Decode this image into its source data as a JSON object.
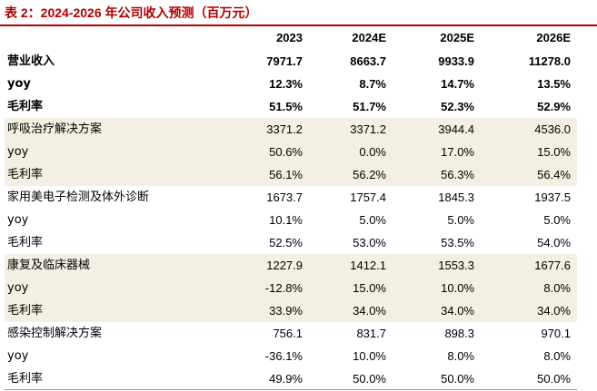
{
  "title": "表 2：2024-2026 年公司收入预测（百万元）",
  "header": {
    "label": "",
    "years": [
      "2023",
      "2024E",
      "2025E",
      "2026E"
    ]
  },
  "rows": [
    {
      "label": "营业收入",
      "values": [
        "7971.7",
        "8663.7",
        "9933.9",
        "11278.0"
      ],
      "bold": true,
      "shaded": false
    },
    {
      "label": "yoy",
      "values": [
        "12.3%",
        "8.7%",
        "14.7%",
        "13.5%"
      ],
      "bold": true,
      "shaded": false
    },
    {
      "label": "毛利率",
      "values": [
        "51.5%",
        "51.7%",
        "52.3%",
        "52.9%"
      ],
      "bold": true,
      "shaded": false
    },
    {
      "label": "呼吸治疗解决方案",
      "values": [
        "3371.2",
        "3371.2",
        "3944.4",
        "4536.0"
      ],
      "bold": false,
      "shaded": true
    },
    {
      "label": "yoy",
      "values": [
        "50.6%",
        "0.0%",
        "17.0%",
        "15.0%"
      ],
      "bold": false,
      "shaded": true
    },
    {
      "label": "毛利率",
      "values": [
        "56.1%",
        "56.2%",
        "56.3%",
        "56.4%"
      ],
      "bold": false,
      "shaded": true
    },
    {
      "label": "家用美电子检测及体外诊断",
      "values": [
        "1673.7",
        "1757.4",
        "1845.3",
        "1937.5"
      ],
      "bold": false,
      "shaded": false
    },
    {
      "label": "yoy",
      "values": [
        "10.1%",
        "5.0%",
        "5.0%",
        "5.0%"
      ],
      "bold": false,
      "shaded": false
    },
    {
      "label": "毛利率",
      "values": [
        "52.5%",
        "53.0%",
        "53.5%",
        "54.0%"
      ],
      "bold": false,
      "shaded": false
    },
    {
      "label": "康复及临床器械",
      "values": [
        "1227.9",
        "1412.1",
        "1553.3",
        "1677.6"
      ],
      "bold": false,
      "shaded": true
    },
    {
      "label": "yoy",
      "values": [
        "-12.8%",
        "15.0%",
        "10.0%",
        "8.0%"
      ],
      "bold": false,
      "shaded": true
    },
    {
      "label": "毛利率",
      "values": [
        "33.9%",
        "34.0%",
        "34.0%",
        "34.0%"
      ],
      "bold": false,
      "shaded": true
    },
    {
      "label": "感染控制解决方案",
      "values": [
        "756.1",
        "831.7",
        "898.3",
        "970.1"
      ],
      "bold": false,
      "shaded": false
    },
    {
      "label": "yoy",
      "values": [
        "-36.1%",
        "10.0%",
        "8.0%",
        "8.0%"
      ],
      "bold": false,
      "shaded": false
    },
    {
      "label": "毛利率",
      "values": [
        "49.9%",
        "50.0%",
        "50.0%",
        "50.0%"
      ],
      "bold": false,
      "shaded": false
    }
  ],
  "colors": {
    "title": "#b30000",
    "shade": "#f4efe3"
  }
}
